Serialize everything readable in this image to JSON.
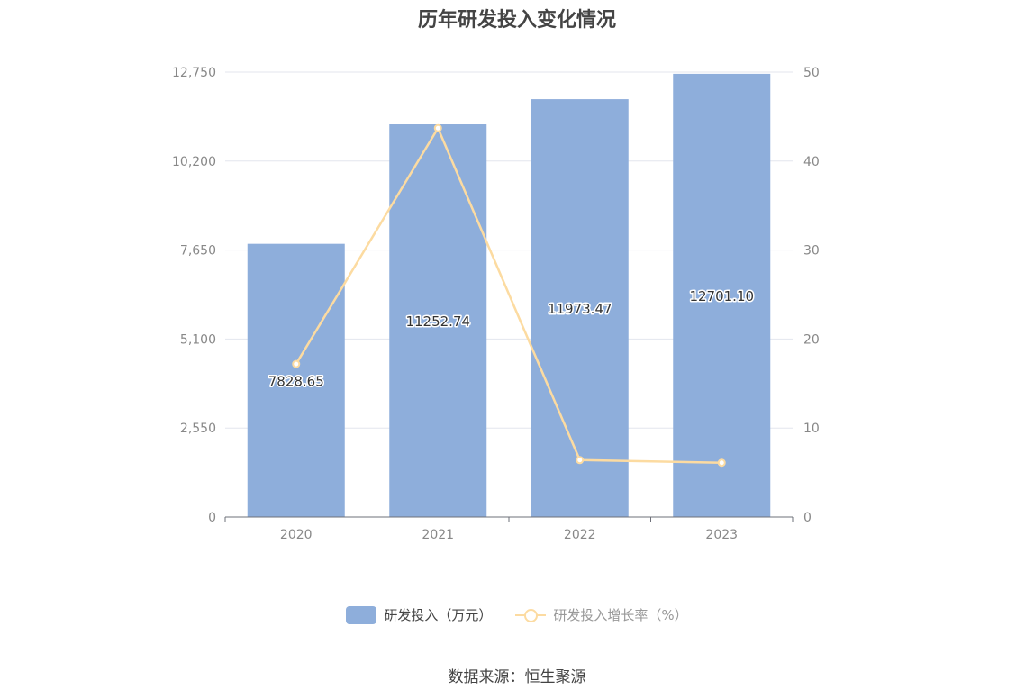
{
  "chart_data": {
    "type": "bar",
    "title": "历年研发投入变化情况",
    "categories": [
      "2020",
      "2021",
      "2022",
      "2023"
    ],
    "series": [
      {
        "name": "研发投入（万元）",
        "type": "bar",
        "axis": "left",
        "values": [
          7828.65,
          11252.74,
          11973.47,
          12701.1
        ],
        "labels": [
          "7828.65",
          "11252.74",
          "11973.47",
          "12701.10"
        ],
        "color": "#8eaedb"
      },
      {
        "name": "研发投入增长率（%）",
        "type": "line",
        "axis": "right",
        "values": [
          17.2,
          43.7,
          6.4,
          6.1
        ],
        "color": "#fcdba1"
      }
    ],
    "y_left": {
      "min": 0,
      "max": 12750,
      "ticks": [
        0,
        2550,
        5100,
        7650,
        10200,
        12750
      ],
      "tick_labels": [
        "0",
        "2,550",
        "5,100",
        "7,650",
        "10,200",
        "12,750"
      ]
    },
    "y_right": {
      "min": 0,
      "max": 50,
      "ticks": [
        0,
        10,
        20,
        30,
        40,
        50
      ],
      "tick_labels": [
        "0",
        "10",
        "20",
        "30",
        "40",
        "50"
      ]
    },
    "grid": true,
    "legend_position": "bottom-center",
    "source": "数据来源：恒生聚源"
  }
}
